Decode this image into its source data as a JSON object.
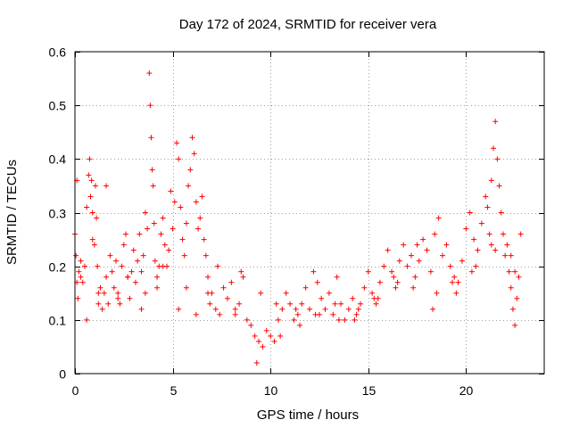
{
  "chart_data": {
    "type": "scatter",
    "title": "Day 172 of 2024, SRMTID for receiver vera",
    "xlabel": "GPS time / hours",
    "ylabel": "SRMTID / TECUs",
    "xlim": [
      0,
      24
    ],
    "ylim": [
      0,
      0.6
    ],
    "xticks": [
      0,
      5,
      10,
      15,
      20
    ],
    "yticks": [
      0,
      0.1,
      0.2,
      0.3,
      0.4,
      0.5,
      0.6
    ],
    "xtick_labels": [
      "0",
      "5",
      "10",
      "15",
      "20"
    ],
    "ytick_labels": [
      "0",
      "0.1",
      "0.2",
      "0.3",
      "0.4",
      "0.5",
      "0.6"
    ],
    "grid": true,
    "marker": "+",
    "color": "#ff0000",
    "series": [
      {
        "name": "SRMTID",
        "x": [
          0.0,
          0.05,
          0.1,
          0.15,
          0.2,
          0.3,
          0.4,
          0.5,
          0.6,
          0.7,
          0.75,
          0.8,
          0.85,
          0.9,
          1.0,
          1.05,
          1.1,
          1.15,
          1.2,
          1.3,
          1.4,
          1.5,
          1.6,
          1.7,
          1.8,
          1.9,
          2.0,
          2.1,
          2.2,
          2.3,
          2.4,
          2.5,
          2.6,
          2.7,
          2.8,
          2.9,
          3.0,
          3.1,
          3.2,
          3.3,
          3.4,
          3.5,
          3.6,
          3.7,
          3.8,
          3.85,
          3.9,
          3.95,
          4.0,
          4.05,
          4.1,
          4.2,
          4.3,
          4.4,
          4.5,
          4.6,
          4.7,
          4.8,
          4.9,
          5.0,
          5.1,
          5.2,
          5.3,
          5.4,
          5.5,
          5.6,
          5.7,
          5.8,
          5.9,
          6.0,
          6.1,
          6.2,
          6.3,
          6.4,
          6.5,
          6.6,
          6.7,
          6.8,
          6.9,
          7.0,
          7.2,
          7.4,
          7.6,
          7.8,
          8.0,
          8.2,
          8.4,
          8.6,
          8.8,
          9.0,
          9.2,
          9.4,
          9.6,
          9.8,
          10.0,
          10.2,
          10.4,
          10.6,
          10.8,
          11.0,
          11.2,
          11.4,
          11.6,
          11.8,
          12.0,
          12.2,
          12.4,
          12.6,
          12.8,
          13.0,
          13.2,
          13.4,
          13.6,
          13.8,
          14.0,
          14.2,
          14.4,
          14.6,
          14.8,
          15.0,
          15.2,
          15.4,
          15.6,
          15.8,
          16.0,
          16.2,
          16.4,
          16.6,
          16.8,
          17.0,
          17.2,
          17.4,
          17.6,
          17.8,
          18.0,
          18.2,
          18.4,
          18.6,
          18.8,
          19.0,
          19.2,
          19.4,
          19.6,
          19.8,
          20.0,
          20.2,
          20.4,
          20.6,
          20.8,
          21.0,
          21.1,
          21.2,
          21.3,
          21.4,
          21.5,
          21.6,
          21.7,
          21.8,
          21.9,
          22.0,
          22.1,
          22.2,
          22.3,
          22.4,
          22.5,
          22.6,
          22.7,
          22.8,
          0.1,
          0.6,
          1.2,
          2.2,
          3.4,
          4.5,
          5.7,
          6.8,
          8.5,
          9.5,
          10.5,
          11.5,
          12.5,
          13.5,
          14.5,
          15.5,
          16.5,
          17.5,
          18.5,
          19.5,
          20.5,
          21.5,
          22.5,
          0.3,
          0.9,
          1.6,
          2.7,
          3.6,
          4.2,
          5.3,
          6.2,
          7.3,
          8.2,
          9.3,
          10.3,
          11.3,
          12.3,
          13.3,
          14.3,
          15.3,
          16.3,
          17.3,
          18.3,
          19.3,
          20.3,
          21.3,
          22.3
        ],
        "y": [
          0.26,
          0.22,
          0.17,
          0.14,
          0.19,
          0.21,
          0.17,
          0.2,
          0.31,
          0.37,
          0.4,
          0.33,
          0.36,
          0.3,
          0.24,
          0.35,
          0.29,
          0.2,
          0.13,
          0.16,
          0.12,
          0.15,
          0.18,
          0.13,
          0.22,
          0.19,
          0.16,
          0.21,
          0.15,
          0.13,
          0.2,
          0.24,
          0.26,
          0.18,
          0.14,
          0.19,
          0.23,
          0.17,
          0.21,
          0.26,
          0.19,
          0.22,
          0.3,
          0.27,
          0.56,
          0.5,
          0.44,
          0.38,
          0.35,
          0.28,
          0.21,
          0.18,
          0.2,
          0.26,
          0.29,
          0.24,
          0.2,
          0.23,
          0.34,
          0.27,
          0.32,
          0.43,
          0.4,
          0.31,
          0.25,
          0.22,
          0.28,
          0.35,
          0.38,
          0.44,
          0.41,
          0.32,
          0.27,
          0.29,
          0.33,
          0.25,
          0.22,
          0.18,
          0.13,
          0.15,
          0.12,
          0.11,
          0.16,
          0.14,
          0.17,
          0.12,
          0.13,
          0.18,
          0.1,
          0.09,
          0.07,
          0.06,
          0.05,
          0.08,
          0.07,
          0.06,
          0.1,
          0.12,
          0.15,
          0.13,
          0.1,
          0.11,
          0.13,
          0.16,
          0.12,
          0.19,
          0.17,
          0.14,
          0.12,
          0.15,
          0.11,
          0.18,
          0.13,
          0.1,
          0.12,
          0.14,
          0.11,
          0.13,
          0.16,
          0.19,
          0.15,
          0.13,
          0.17,
          0.2,
          0.23,
          0.19,
          0.16,
          0.21,
          0.24,
          0.2,
          0.22,
          0.18,
          0.21,
          0.25,
          0.23,
          0.19,
          0.26,
          0.29,
          0.22,
          0.24,
          0.2,
          0.18,
          0.17,
          0.21,
          0.27,
          0.3,
          0.25,
          0.23,
          0.28,
          0.33,
          0.31,
          0.26,
          0.36,
          0.42,
          0.47,
          0.4,
          0.35,
          0.3,
          0.26,
          0.22,
          0.24,
          0.19,
          0.16,
          0.12,
          0.09,
          0.14,
          0.18,
          0.26,
          0.36,
          0.1,
          0.15,
          0.14,
          0.12,
          0.2,
          0.16,
          0.15,
          0.19,
          0.15,
          0.07,
          0.09,
          0.11,
          0.1,
          0.12,
          0.14,
          0.17,
          0.24,
          0.15,
          0.15,
          0.2,
          0.23,
          0.19,
          0.18,
          0.25,
          0.35,
          0.18,
          0.15,
          0.16,
          0.12,
          0.11,
          0.2,
          0.11,
          0.02,
          0.13,
          0.12,
          0.11,
          0.13,
          0.1,
          0.14,
          0.18,
          0.16,
          0.12,
          0.17,
          0.19,
          0.24,
          0.22
        ]
      }
    ]
  }
}
